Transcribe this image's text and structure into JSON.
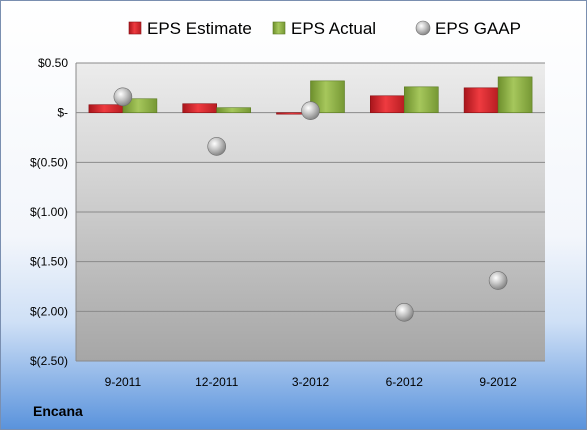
{
  "company": "Encana",
  "chart_data": {
    "type": "bar",
    "categories": [
      "9-2011",
      "12-2011",
      "3-2012",
      "6-2012",
      "9-2012"
    ],
    "series": [
      {
        "name": "EPS Estimate",
        "kind": "bar",
        "color": "#d42a2f",
        "values": [
          0.08,
          0.09,
          -0.01,
          0.17,
          0.25
        ]
      },
      {
        "name": "EPS Actual",
        "kind": "bar",
        "color": "#8fb046",
        "values": [
          0.14,
          0.05,
          0.32,
          0.26,
          0.36
        ]
      },
      {
        "name": "EPS GAAP",
        "kind": "scatter",
        "color": "#b4b4b4",
        "values": [
          0.16,
          -0.34,
          0.02,
          -2.01,
          -1.69
        ]
      }
    ],
    "yticks": [
      0.5,
      0,
      -0.5,
      -1.0,
      -1.5,
      -2.0,
      -2.5
    ],
    "ytick_labels": [
      "$0.50",
      "$-",
      "$(0.50)",
      "$(1.00)",
      "$(1.50)",
      "$(2.00)",
      "$(2.50)"
    ],
    "ylim": [
      -2.5,
      0.5
    ],
    "grid": true,
    "legend_position": "top"
  }
}
